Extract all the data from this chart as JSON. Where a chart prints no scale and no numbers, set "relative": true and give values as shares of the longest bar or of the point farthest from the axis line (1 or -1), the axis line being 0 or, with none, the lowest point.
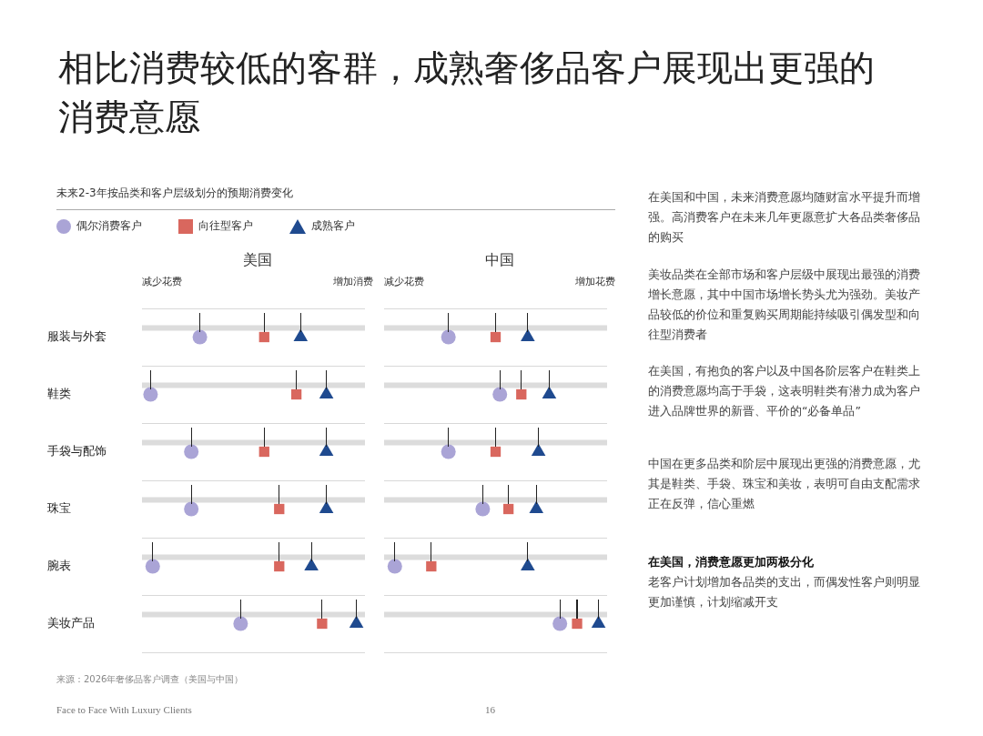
{
  "chart_data": [
    {
      "type": "other",
      "title": "相比消费较低的客群，成熟奢侈品客户展现出更强的消费意愿",
      "subtitle": "未来2-3年按品类和客户层级划分的预期消费变化",
      "annotations": [
        "在美国和中国，未来消费意愿均随财富水平提升而增强。高消费客户在未来几年更愿意扩大各品类奢侈品的购买",
        "美妆品类在全部市场和客户层级中展现出最强的消费增长意愿，其中中国市场增长势头尤为强劲。美妆产品较低的价位和重复购买周期能持续吸引偶发型和向往型消费者",
        "在美国，有抱负的客户以及中国各阶层客户在鞋类上的消费意愿均高于手袋，这表明鞋类有潜力成为客户进入品牌世界的新晋、平价的“必备单品”",
        "中国在更多品类和阶层中展现出更强的消费意愿，尤其是鞋类、手袋、珠宝和美妆，表明可自由支配需求正在反弹，信心重燃",
        "在美国，消费意愿更加两极分化",
        "老客户计划增加各品类的支出，而偶发性客户则明显更加谨慎，计划缩减开支",
        "来源：2026年奢侈品客户调查（美国与中国）",
        "Face to Face With Luxury Clients",
        "16"
      ]
    },
    {
      "type": "scatter",
      "orientation": "horizontal",
      "relative": true,
      "title": "美国",
      "annotations": [
        "减少花费",
        "增加消费"
      ],
      "categories": [
        "服装与外套",
        "鞋类",
        "手袋与配饰",
        "珠宝",
        "腕表",
        "美妆产品"
      ],
      "grid": "y",
      "tick_labels": "y",
      "legend": "top left",
      "ref_lines": [
        {
          "axis": "y",
          "value": "服装与外套",
          "color": "#dcdcdc"
        },
        {
          "axis": "y",
          "value": "鞋类",
          "color": "#dcdcdc"
        },
        {
          "axis": "y",
          "value": "手袋与配饰",
          "color": "#dcdcdc"
        },
        {
          "axis": "y",
          "value": "珠宝",
          "color": "#dcdcdc"
        },
        {
          "axis": "y",
          "value": "腕表",
          "color": "#dcdcdc"
        },
        {
          "axis": "y",
          "value": "美妆产品",
          "color": "#dcdcdc"
        }
      ],
      "series": [
        {
          "name": "偶尔消费客户",
          "color": "#aaa4d6",
          "marker": "circle",
          "values": [
            0.27,
            0.04,
            0.23,
            0.23,
            0.05,
            0.46
          ]
        },
        {
          "name": "向往型客户",
          "color": "#d9675e",
          "marker": "square",
          "values": [
            0.57,
            0.72,
            0.57,
            0.64,
            0.64,
            0.84
          ]
        },
        {
          "name": "成熟客户",
          "color": "#1f4a8f",
          "marker": "triangle",
          "values": [
            0.74,
            0.86,
            0.86,
            0.86,
            0.79,
            1
          ]
        }
      ]
    },
    {
      "type": "scatter",
      "orientation": "horizontal",
      "relative": true,
      "title": "中国",
      "annotations": [
        "减少花费",
        "增加花费"
      ],
      "categories": [
        "服装与外套",
        "鞋类",
        "手袋与配饰",
        "珠宝",
        "腕表",
        "美妆产品"
      ],
      "grid": "y",
      "tick_labels": false,
      "ref_lines": [
        {
          "axis": "y",
          "value": "服装与外套",
          "color": "#dcdcdc"
        },
        {
          "axis": "y",
          "value": "鞋类",
          "color": "#dcdcdc"
        },
        {
          "axis": "y",
          "value": "手袋与配饰",
          "color": "#dcdcdc"
        },
        {
          "axis": "y",
          "value": "珠宝",
          "color": "#dcdcdc"
        },
        {
          "axis": "y",
          "value": "腕表",
          "color": "#dcdcdc"
        },
        {
          "axis": "y",
          "value": "美妆产品",
          "color": "#dcdcdc"
        }
      ],
      "series": [
        {
          "color": "#aaa4d6",
          "marker": "circle",
          "values": [
            0.3,
            0.54,
            0.3,
            0.46,
            0.05,
            0.82
          ]
        },
        {
          "color": "#d9675e",
          "marker": "square",
          "values": [
            0.52,
            0.64,
            0.52,
            0.58,
            0.22,
            0.9
          ]
        },
        {
          "color": "#1f4a8f",
          "marker": "triangle",
          "values": [
            0.67,
            0.77,
            0.72,
            0.71,
            0.67,
            1
          ]
        }
      ]
    }
  ]
}
